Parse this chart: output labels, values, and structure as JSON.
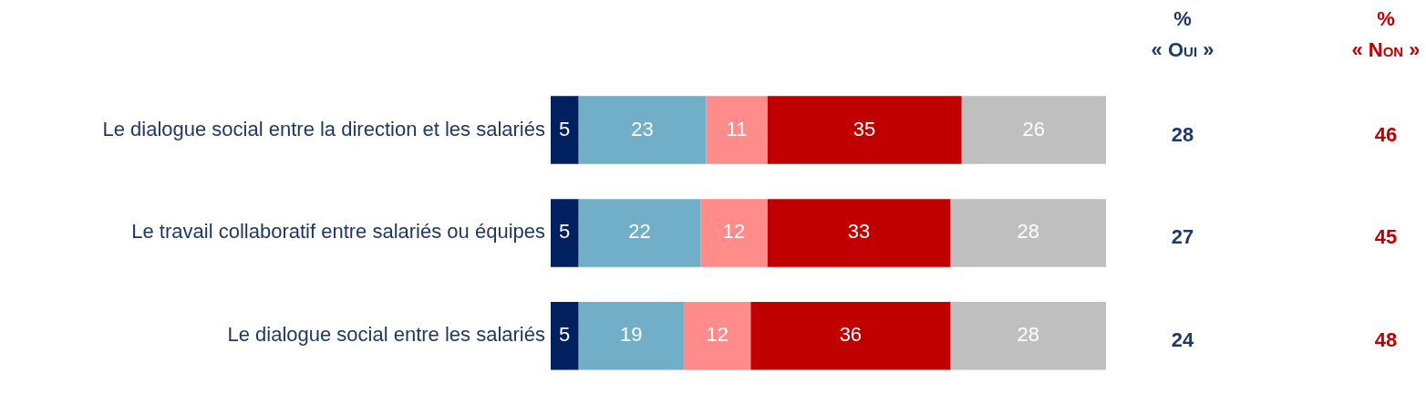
{
  "chart_data": {
    "type": "bar",
    "orientation": "horizontal",
    "stacked": true,
    "data_labels": true,
    "grid": false,
    "legend": false,
    "tick_labels": "y",
    "categories": [
      "Le dialogue social entre la direction et les salariés",
      "Le travail collaboratif entre salariés ou équipes",
      "Le dialogue social entre les salariés"
    ],
    "xlim": [
      0,
      100
    ],
    "series": [
      {
        "color": "#002060",
        "values": [
          5,
          5,
          5
        ]
      },
      {
        "color": "#71afc8",
        "values": [
          23,
          22,
          19
        ]
      },
      {
        "color": "#ff8b8b",
        "values": [
          11,
          12,
          12
        ]
      },
      {
        "color": "#c00000",
        "values": [
          35,
          33,
          36
        ]
      },
      {
        "color": "#bfbfbf",
        "values": [
          26,
          28,
          28
        ]
      }
    ],
    "annotations": [
      "%",
      "« Oui »",
      "%",
      "« Non »",
      "28",
      "46",
      "27",
      "45",
      "24",
      "48"
    ]
  }
}
